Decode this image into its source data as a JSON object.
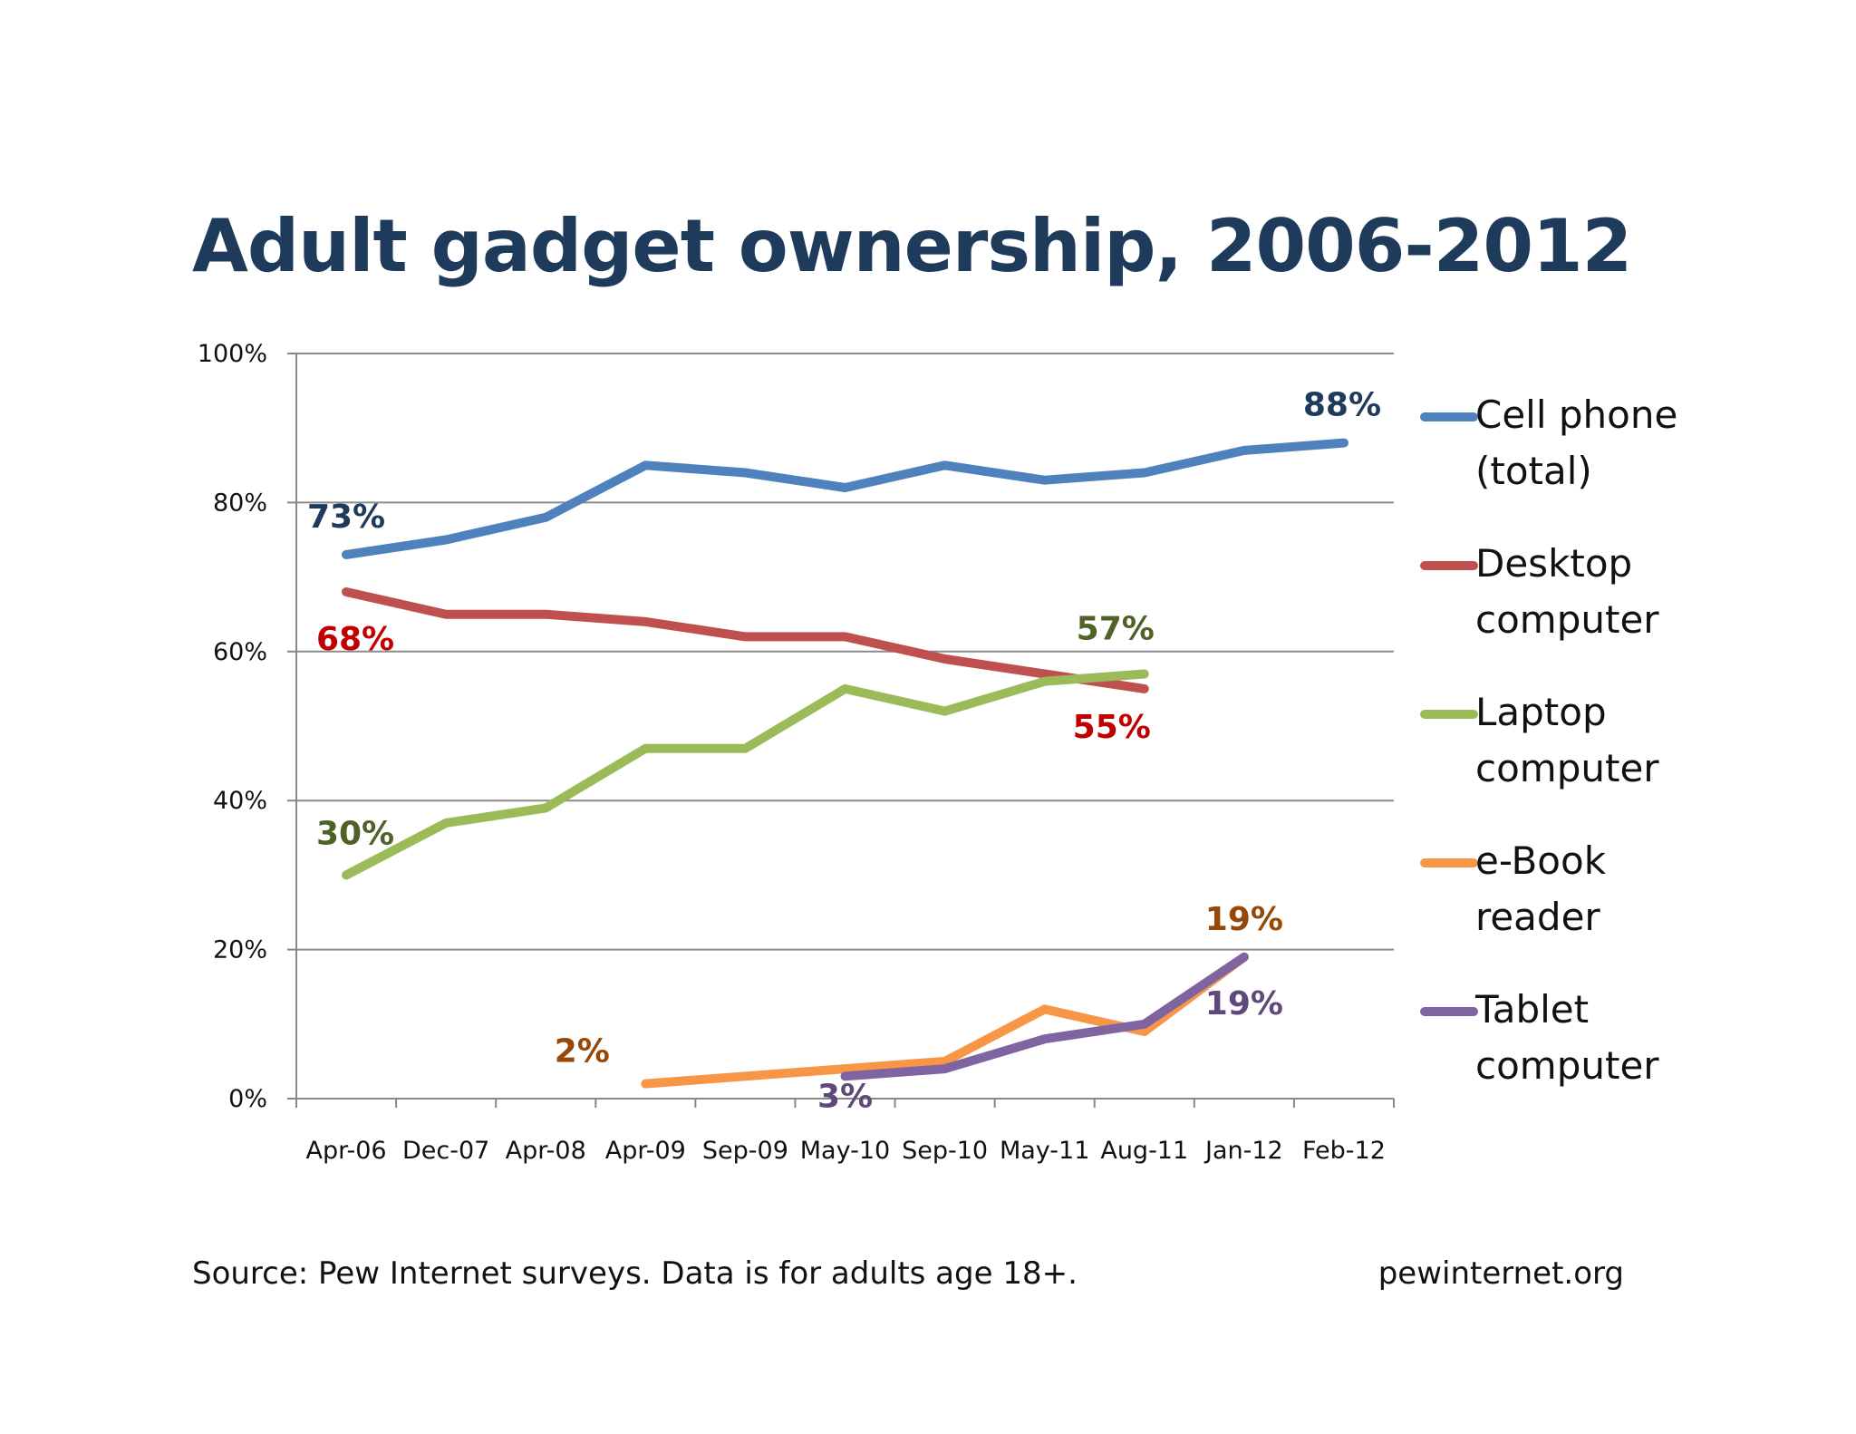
{
  "chart_data": {
    "type": "line",
    "title": "Adult gadget ownership, 2006-2012",
    "categories": [
      "Apr-06",
      "Dec-07",
      "Apr-08",
      "Apr-09",
      "Sep-09",
      "May-10",
      "Sep-10",
      "May-11",
      "Aug-11",
      "Jan-12",
      "Feb-12"
    ],
    "yticks": [
      "0%",
      "20%",
      "40%",
      "60%",
      "80%",
      "100%"
    ],
    "ylim": [
      0,
      100
    ],
    "grid": true,
    "legend_position": "right",
    "series": [
      {
        "name": "Cell phone (total)",
        "legend_lines": [
          "Cell phone",
          "(total)"
        ],
        "color": "#4f81bd",
        "values": [
          73,
          75,
          78,
          85,
          84,
          82,
          85,
          83,
          84,
          87,
          88
        ]
      },
      {
        "name": "Desktop computer",
        "legend_lines": [
          "Desktop",
          "computer"
        ],
        "color": "#c0504d",
        "values": [
          68,
          65,
          65,
          64,
          62,
          62,
          59,
          57,
          55,
          null,
          null
        ]
      },
      {
        "name": "Laptop computer",
        "legend_lines": [
          "Laptop",
          "computer"
        ],
        "color": "#9bbb59",
        "values": [
          30,
          37,
          39,
          47,
          47,
          55,
          52,
          56,
          57,
          null,
          null
        ]
      },
      {
        "name": "e-Book reader",
        "legend_lines": [
          "e-Book",
          "reader"
        ],
        "color": "#f79646",
        "values": [
          null,
          null,
          null,
          2,
          3,
          4,
          5,
          12,
          9,
          19,
          null
        ]
      },
      {
        "name": "Tablet computer",
        "legend_lines": [
          "Tablet",
          "computer"
        ],
        "color": "#8064a2",
        "values": [
          null,
          null,
          null,
          null,
          null,
          3,
          4,
          8,
          10,
          19,
          null
        ]
      }
    ],
    "annotations": [
      {
        "text": "73%",
        "series": "Cell phone (total)",
        "category": "Apr-06",
        "color": "#1f3b5c"
      },
      {
        "text": "88%",
        "series": "Cell phone (total)",
        "category": "Feb-12",
        "color": "#1f3b5c"
      },
      {
        "text": "68%",
        "series": "Desktop computer",
        "category": "Apr-06",
        "color": "#c00000"
      },
      {
        "text": "55%",
        "series": "Desktop computer",
        "category": "Aug-11",
        "color": "#c00000"
      },
      {
        "text": "30%",
        "series": "Laptop computer",
        "category": "Apr-06",
        "color": "#4f6228"
      },
      {
        "text": "57%",
        "series": "Laptop computer",
        "category": "Aug-11",
        "color": "#4f6228"
      },
      {
        "text": "2%",
        "series": "e-Book reader",
        "category": "Apr-09",
        "color": "#974706"
      },
      {
        "text": "19%",
        "series": "e-Book reader",
        "category": "Jan-12",
        "color": "#974706"
      },
      {
        "text": "3%",
        "series": "Tablet computer",
        "category": "May-10",
        "color": "#5f497a"
      },
      {
        "text": "19%",
        "series": "Tablet computer",
        "category": "Jan-12",
        "color": "#5f497a"
      }
    ]
  },
  "footer": {
    "source": "Source: Pew Internet surveys. Data is for adults age 18+.",
    "site": "pewinternet.org"
  }
}
